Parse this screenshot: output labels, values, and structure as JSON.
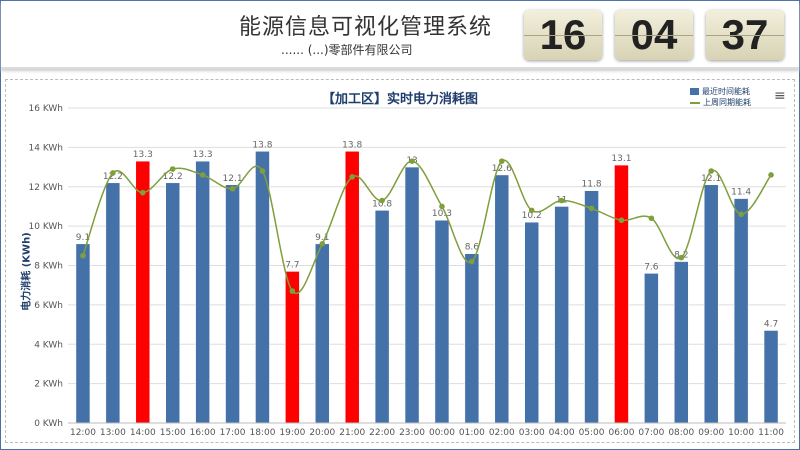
{
  "header": {
    "title": "能源信息可视化管理系统",
    "company": "...... (...)零部件有限公司",
    "clock": {
      "hours": "16",
      "minutes": "04",
      "seconds": "37"
    }
  },
  "chart_data": {
    "type": "bar",
    "title": "【加工区】实时电力消耗图",
    "ylabel": "电力消耗 (KWh)",
    "xlabel": "",
    "ylim": [
      0,
      16
    ],
    "yticks": [
      "0 KWh",
      "2 KWh",
      "4 KWh",
      "6 KWh",
      "8 KWh",
      "10 KWh",
      "12 KWh",
      "14 KWh",
      "16 KWh"
    ],
    "grid": true,
    "legend_position": "top-right",
    "categories": [
      "12:00",
      "13:00",
      "14:00",
      "15:00",
      "16:00",
      "17:00",
      "18:00",
      "19:00",
      "20:00",
      "21:00",
      "22:00",
      "23:00",
      "00:00",
      "01:00",
      "02:00",
      "03:00",
      "04:00",
      "05:00",
      "06:00",
      "07:00",
      "08:00",
      "09:00",
      "10:00",
      "11:00"
    ],
    "series": [
      {
        "name": "最近时间能耗",
        "type": "bar",
        "color": "#4472a8",
        "highlight_color": "#ff0000",
        "values": [
          9.1,
          12.2,
          13.3,
          12.2,
          13.3,
          12.1,
          13.8,
          7.7,
          9.1,
          13.8,
          10.8,
          13,
          10.3,
          8.6,
          12.6,
          10.2,
          11,
          11.8,
          13.1,
          7.6,
          8.2,
          12.1,
          11.4,
          4.7
        ],
        "labels": [
          "9.1",
          "12.2",
          "13.3",
          "12.2",
          "13.3",
          "12.1",
          "13.8",
          "7.7",
          "9.1",
          "13.8",
          "10.8",
          "13",
          "10.3",
          "8.6",
          "12.6",
          "10.2",
          "11",
          "11.8",
          "13.1",
          "7.6",
          "8.2",
          "12.1",
          "11.4",
          "4.7"
        ],
        "highlighted": [
          2,
          7,
          9,
          18
        ]
      },
      {
        "name": "上周同期能耗",
        "type": "line",
        "color": "#7f9e3c",
        "values": [
          8.5,
          12.7,
          11.7,
          12.9,
          12.6,
          11.9,
          12.8,
          6.7,
          9.1,
          12.5,
          11.3,
          13.3,
          11.0,
          8.2,
          13.3,
          10.8,
          11.3,
          10.9,
          10.3,
          10.4,
          8.4,
          12.8,
          10.6,
          12.6
        ]
      }
    ]
  },
  "menu_icon": "hamburger-menu-icon"
}
